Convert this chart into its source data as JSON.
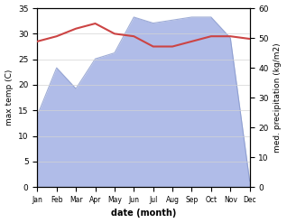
{
  "months": [
    "Jan",
    "Feb",
    "Mar",
    "Apr",
    "May",
    "Jun",
    "Jul",
    "Aug",
    "Sep",
    "Oct",
    "Nov",
    "Dec"
  ],
  "temp": [
    28.5,
    29.5,
    31.0,
    32.0,
    30.0,
    29.5,
    27.5,
    27.5,
    28.5,
    29.5,
    29.5,
    29.0
  ],
  "precip": [
    24,
    40,
    33,
    43,
    45,
    57,
    55,
    56,
    57,
    57,
    50,
    2
  ],
  "temp_color": "#cc4444",
  "precip_color_fill": "#b0bce8",
  "precip_color_line": "#8899cc",
  "bg_color": "#ffffff",
  "xlabel": "date (month)",
  "ylabel_left": "max temp (C)",
  "ylabel_right": "med. precipitation (kg/m2)",
  "ylim_left": [
    0,
    35
  ],
  "ylim_right": [
    0,
    60
  ],
  "yticks_left": [
    0,
    5,
    10,
    15,
    20,
    25,
    30,
    35
  ],
  "yticks_right": [
    0,
    10,
    20,
    30,
    40,
    50,
    60
  ],
  "fig_width": 3.18,
  "fig_height": 2.47,
  "dpi": 100
}
